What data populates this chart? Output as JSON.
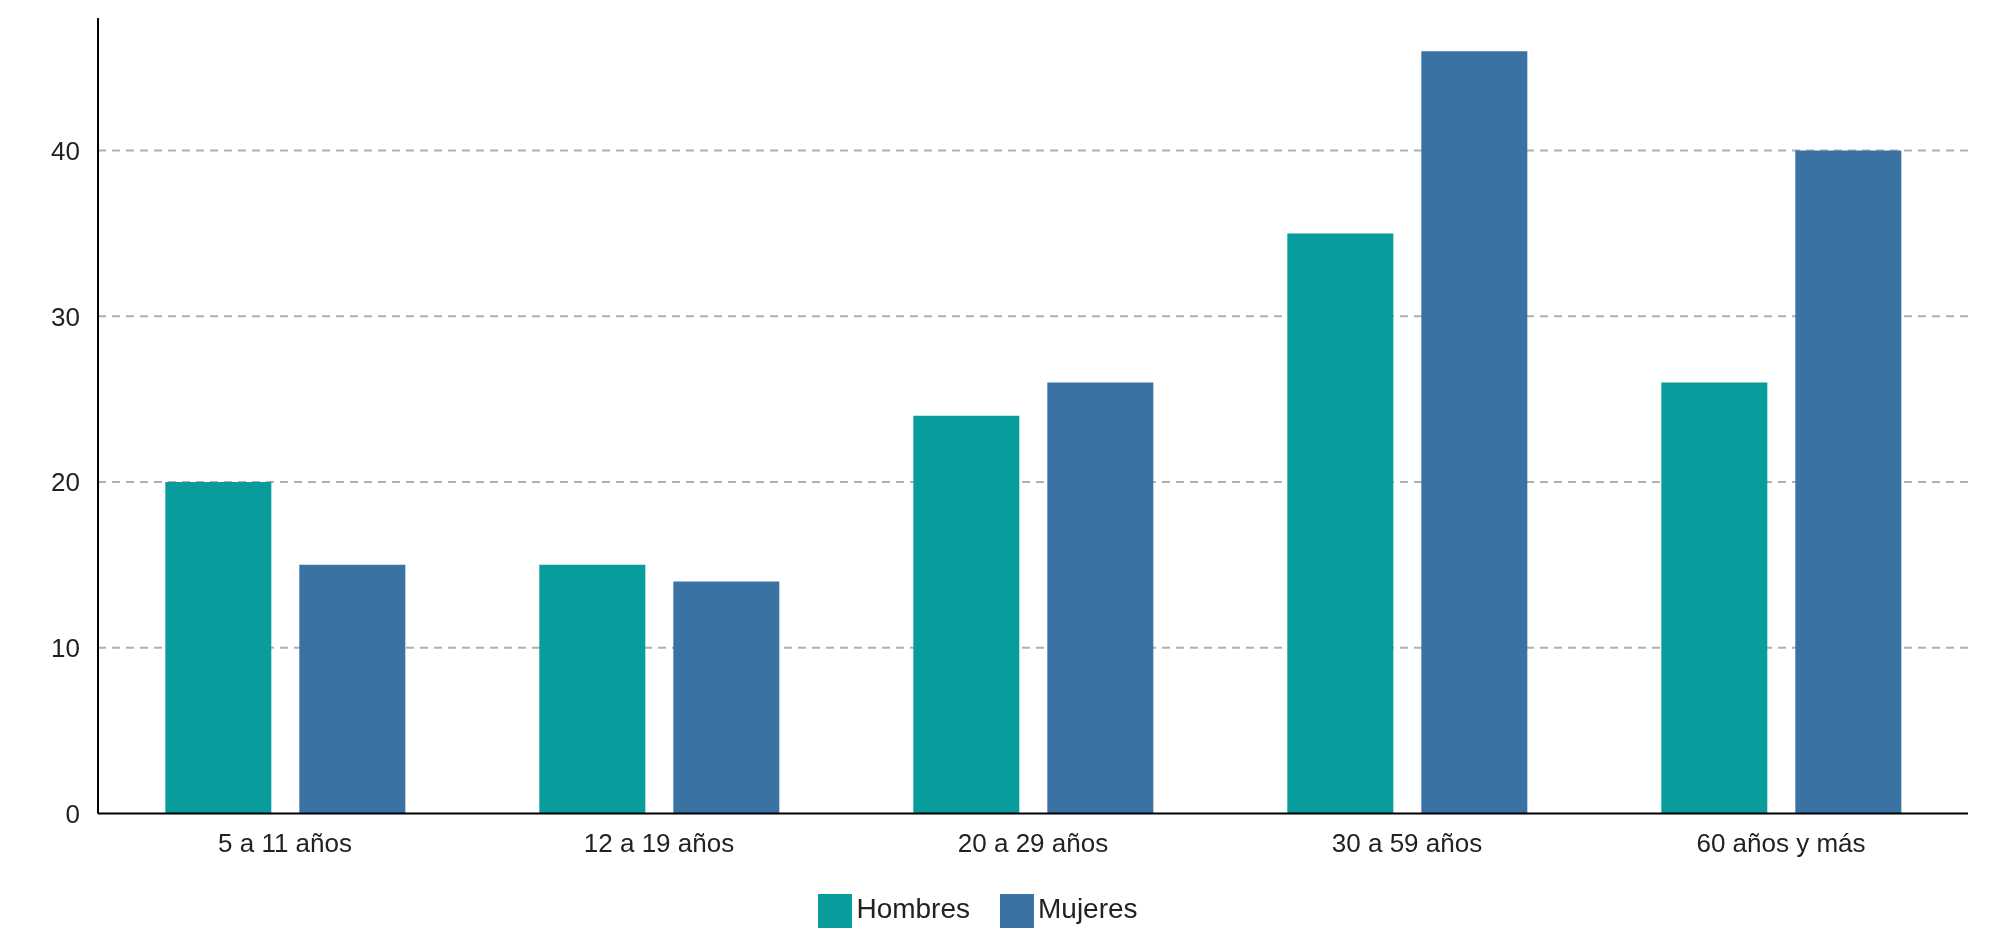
{
  "chart_data": {
    "type": "bar",
    "categories": [
      "5 a 11 años",
      "12 a 19 años",
      "20 a 29 años",
      "30 a 59 años",
      "60 años y más"
    ],
    "series": [
      {
        "name": "Hombres",
        "color": "#089c9c",
        "values": [
          20,
          15,
          24,
          35,
          26
        ]
      },
      {
        "name": "Mujeres",
        "color": "#3a73a3",
        "values": [
          15,
          14,
          26,
          46,
          40
        ]
      }
    ],
    "ylim": [
      0,
      48
    ],
    "yticks": [
      0,
      10,
      20,
      30,
      40
    ],
    "grid": "y",
    "legend": "bottom"
  }
}
